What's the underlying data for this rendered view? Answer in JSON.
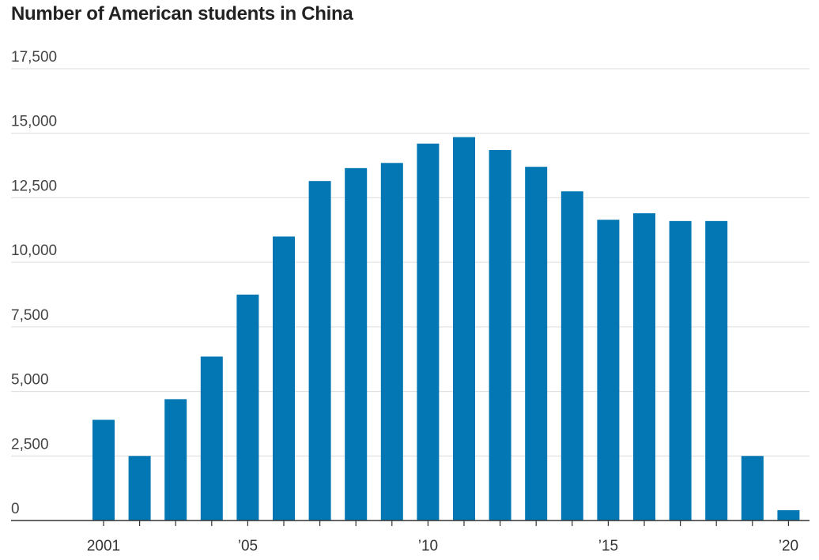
{
  "chart_data": {
    "type": "bar",
    "title": "Number of American students in China",
    "xlabel": "",
    "ylabel": "",
    "ylim": [
      0,
      17500
    ],
    "yticks": [
      0,
      2500,
      5000,
      7500,
      10000,
      12500,
      15000,
      17500
    ],
    "ytick_labels": [
      "0",
      "2,500",
      "5,000",
      "7,500",
      "10,000",
      "12,500",
      "15,000",
      "17,500"
    ],
    "xticks": [
      {
        "year": 2001,
        "label": "2001"
      },
      {
        "year": 2005,
        "label": "’05"
      },
      {
        "year": 2010,
        "label": "’10"
      },
      {
        "year": 2015,
        "label": "’15"
      },
      {
        "year": 2020,
        "label": "’20"
      }
    ],
    "categories": [
      2001,
      2002,
      2003,
      2004,
      2005,
      2006,
      2007,
      2008,
      2009,
      2010,
      2011,
      2012,
      2013,
      2014,
      2015,
      2016,
      2017,
      2018,
      2019,
      2020
    ],
    "values": [
      3900,
      2500,
      4700,
      6350,
      8750,
      11000,
      13150,
      13650,
      13850,
      14600,
      14850,
      14350,
      13700,
      12750,
      11650,
      11900,
      11600,
      11600,
      2500,
      400
    ],
    "grid": true,
    "bar_color": "#0277b3"
  }
}
